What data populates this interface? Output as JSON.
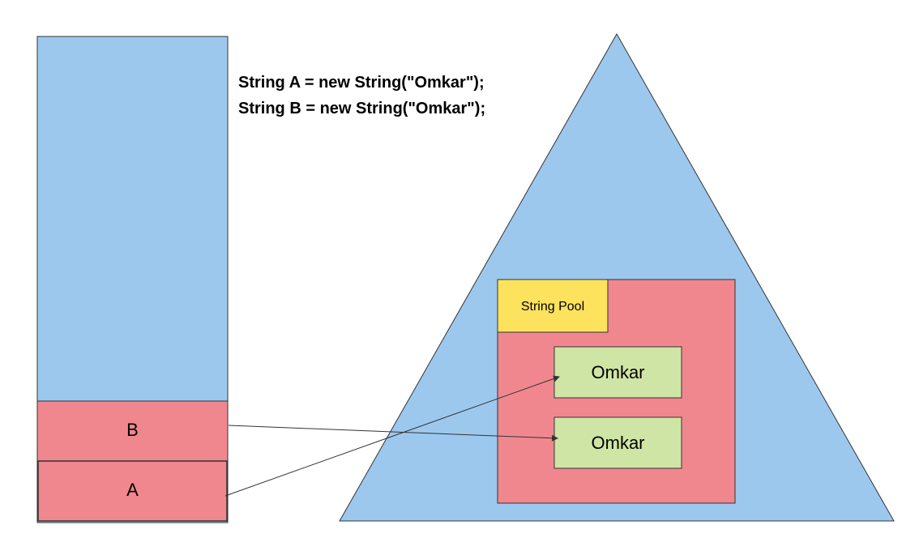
{
  "code": {
    "line1": "String A = new String(\"Omkar\");",
    "line2": "String B = new String(\"Omkar\");"
  },
  "stack": {
    "frames": [
      {
        "label": "B"
      },
      {
        "label": "A"
      }
    ]
  },
  "heap": {
    "string_pool": {
      "label": "String Pool",
      "objects": [
        {
          "value": "Omkar"
        },
        {
          "value": "Omkar"
        }
      ]
    }
  },
  "references": [
    {
      "from": "A",
      "to_object": 0
    },
    {
      "from": "B",
      "to_object": 1
    }
  ],
  "colors": {
    "blue_region": "#9dc8ee",
    "red_region": "#f0878f",
    "pool_label_bg": "#fde25e",
    "object_bg": "#cfe5a5",
    "outline": "#333333"
  }
}
